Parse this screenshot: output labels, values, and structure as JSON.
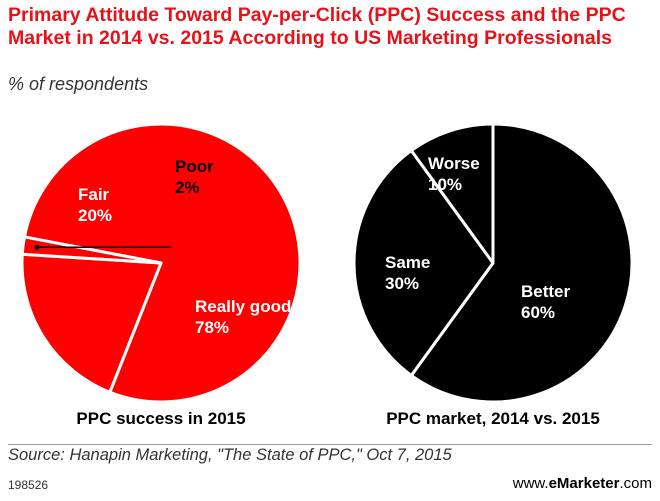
{
  "title": "Primary Attitude Toward Pay-per-Click (PPC) Success and the PPC Market in 2014 vs. 2015 According to US Marketing Professionals",
  "subtitle": "% of respondents",
  "chart_data": [
    {
      "type": "pie",
      "title": "PPC success in 2015",
      "slices": [
        {
          "label": "Really good",
          "value": 78,
          "text": "78%"
        },
        {
          "label": "Fair",
          "value": 20,
          "text": "20%"
        },
        {
          "label": "Poor",
          "value": 2,
          "text": "2%"
        }
      ],
      "colors": {
        "fill": "#ff0000",
        "stroke": "#ffffff"
      }
    },
    {
      "type": "pie",
      "title": "PPC market, 2014 vs. 2015",
      "slices": [
        {
          "label": "Better",
          "value": 60,
          "text": "60%"
        },
        {
          "label": "Same",
          "value": 30,
          "text": "30%"
        },
        {
          "label": "Worse",
          "value": 10,
          "text": "10%"
        }
      ],
      "colors": {
        "fill": "#000000",
        "stroke": "#ffffff"
      }
    }
  ],
  "source": "Source: Hanapin Marketing, \"The State of PPC,\" Oct 7, 2015",
  "footer": {
    "id": "198526",
    "brand_prefix": "www.",
    "brand_bold": "eMarketer",
    "brand_suffix": ".com"
  }
}
